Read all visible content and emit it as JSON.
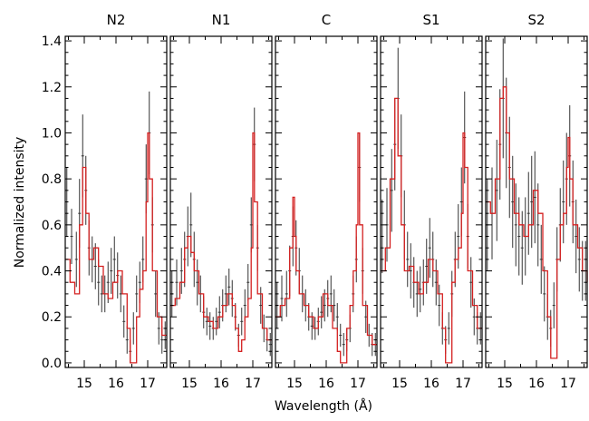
{
  "chart_data": {
    "type": "line",
    "xlabel": "Wavelength  (Å)",
    "ylabel": "Normalized intensity",
    "xlim": [
      14.4,
      17.6
    ],
    "ylim": [
      -0.02,
      1.42
    ],
    "xticks": [
      "15",
      "16",
      "17"
    ],
    "xtick_values": [
      15,
      16,
      17
    ],
    "yticks": [
      "0.0",
      "0.2",
      "0.4",
      "0.6",
      "0.8",
      "1.0",
      "1.2",
      "1.4"
    ],
    "ytick_values": [
      0.0,
      0.2,
      0.4,
      0.6,
      0.8,
      1.0,
      1.2,
      1.4
    ],
    "colors": {
      "data": "#333333",
      "model": "#d42020"
    },
    "panels": [
      {
        "title": "N2",
        "data": {
          "x": [
            14.45,
            14.6,
            14.75,
            14.85,
            14.95,
            15.05,
            15.15,
            15.25,
            15.35,
            15.45,
            15.55,
            15.65,
            15.75,
            15.85,
            15.95,
            16.05,
            16.15,
            16.25,
            16.35,
            16.45,
            16.55,
            16.65,
            16.75,
            16.85,
            16.95,
            17.05,
            17.15,
            17.25,
            17.35,
            17.45,
            17.55
          ],
          "y": [
            0.7,
            0.55,
            0.45,
            0.65,
            0.9,
            0.75,
            0.5,
            0.45,
            0.42,
            0.35,
            0.3,
            0.3,
            0.35,
            0.4,
            0.45,
            0.38,
            0.3,
            0.18,
            0.1,
            0.05,
            0.15,
            0.3,
            0.35,
            0.45,
            0.8,
            1.0,
            0.6,
            0.3,
            0.15,
            0.1,
            0.12
          ],
          "err": [
            0.15,
            0.12,
            0.12,
            0.15,
            0.18,
            0.15,
            0.12,
            0.1,
            0.1,
            0.1,
            0.08,
            0.08,
            0.09,
            0.1,
            0.1,
            0.1,
            0.08,
            0.07,
            0.06,
            0.05,
            0.07,
            0.08,
            0.09,
            0.1,
            0.15,
            0.18,
            0.12,
            0.1,
            0.07,
            0.06,
            0.06
          ]
        },
        "model": {
          "x": [
            14.4,
            14.55,
            14.7,
            14.85,
            14.95,
            15.05,
            15.15,
            15.3,
            15.45,
            15.6,
            15.75,
            15.9,
            16.05,
            16.2,
            16.35,
            16.45,
            16.55,
            16.65,
            16.75,
            16.85,
            16.95,
            17.0,
            17.05,
            17.15,
            17.3,
            17.45,
            17.6
          ],
          "y": [
            0.45,
            0.35,
            0.3,
            0.6,
            0.85,
            0.65,
            0.45,
            0.5,
            0.42,
            0.3,
            0.28,
            0.35,
            0.4,
            0.3,
            0.15,
            0.0,
            0.0,
            0.2,
            0.32,
            0.4,
            0.7,
            1.0,
            0.8,
            0.4,
            0.2,
            0.12,
            0.12
          ]
        }
      },
      {
        "title": "N1",
        "data": {
          "x": [
            14.45,
            14.6,
            14.75,
            14.85,
            14.95,
            15.05,
            15.15,
            15.25,
            15.35,
            15.45,
            15.55,
            15.65,
            15.75,
            15.85,
            15.95,
            16.05,
            16.15,
            16.25,
            16.35,
            16.45,
            16.55,
            16.65,
            16.75,
            16.85,
            16.95,
            17.05,
            17.15,
            17.25,
            17.35,
            17.45,
            17.55
          ],
          "y": [
            0.3,
            0.35,
            0.4,
            0.45,
            0.55,
            0.6,
            0.45,
            0.35,
            0.3,
            0.22,
            0.18,
            0.16,
            0.15,
            0.18,
            0.22,
            0.25,
            0.3,
            0.33,
            0.28,
            0.2,
            0.12,
            0.18,
            0.25,
            0.35,
            0.6,
            0.95,
            0.5,
            0.25,
            0.15,
            0.1,
            0.08
          ],
          "err": [
            0.1,
            0.1,
            0.1,
            0.12,
            0.13,
            0.14,
            0.12,
            0.1,
            0.08,
            0.07,
            0.06,
            0.06,
            0.05,
            0.06,
            0.07,
            0.07,
            0.08,
            0.08,
            0.08,
            0.06,
            0.05,
            0.06,
            0.07,
            0.08,
            0.12,
            0.16,
            0.1,
            0.08,
            0.06,
            0.05,
            0.05
          ]
        },
        "model": {
          "x": [
            14.4,
            14.55,
            14.7,
            14.85,
            14.95,
            15.05,
            15.15,
            15.3,
            15.45,
            15.6,
            15.75,
            15.9,
            16.05,
            16.2,
            16.35,
            16.45,
            16.55,
            16.65,
            16.75,
            16.85,
            16.95,
            17.0,
            17.05,
            17.15,
            17.3,
            17.45,
            17.6
          ],
          "y": [
            0.25,
            0.28,
            0.35,
            0.5,
            0.55,
            0.48,
            0.4,
            0.3,
            0.2,
            0.18,
            0.15,
            0.2,
            0.25,
            0.3,
            0.25,
            0.15,
            0.05,
            0.1,
            0.2,
            0.28,
            0.5,
            1.0,
            0.7,
            0.3,
            0.15,
            0.1,
            0.1
          ]
        }
      },
      {
        "title": "C",
        "data": {
          "x": [
            14.45,
            14.6,
            14.75,
            14.85,
            14.95,
            15.05,
            15.15,
            15.25,
            15.35,
            15.45,
            15.55,
            15.65,
            15.75,
            15.85,
            15.95,
            16.05,
            16.15,
            16.25,
            16.35,
            16.45,
            16.55,
            16.65,
            16.75,
            16.85,
            16.95,
            17.05,
            17.15,
            17.25,
            17.35,
            17.45,
            17.55
          ],
          "y": [
            0.25,
            0.28,
            0.3,
            0.4,
            0.55,
            0.5,
            0.4,
            0.3,
            0.25,
            0.2,
            0.16,
            0.15,
            0.18,
            0.22,
            0.25,
            0.28,
            0.3,
            0.25,
            0.2,
            0.12,
            0.08,
            0.1,
            0.15,
            0.3,
            0.45,
            0.85,
            0.4,
            0.2,
            0.12,
            0.08,
            0.08
          ],
          "err": [
            0.1,
            0.1,
            0.1,
            0.11,
            0.13,
            0.12,
            0.1,
            0.08,
            0.07,
            0.06,
            0.06,
            0.05,
            0.06,
            0.07,
            0.07,
            0.08,
            0.08,
            0.07,
            0.06,
            0.05,
            0.05,
            0.05,
            0.06,
            0.08,
            0.1,
            0.15,
            0.1,
            0.07,
            0.05,
            0.05,
            0.05
          ]
        },
        "model": {
          "x": [
            14.4,
            14.55,
            14.7,
            14.85,
            14.95,
            15.0,
            15.05,
            15.15,
            15.3,
            15.45,
            15.6,
            15.75,
            15.9,
            16.05,
            16.2,
            16.35,
            16.45,
            16.55,
            16.65,
            16.75,
            16.85,
            16.95,
            17.0,
            17.05,
            17.15,
            17.3,
            17.45,
            17.6
          ],
          "y": [
            0.2,
            0.25,
            0.28,
            0.5,
            0.72,
            0.55,
            0.4,
            0.3,
            0.25,
            0.2,
            0.15,
            0.2,
            0.3,
            0.25,
            0.15,
            0.05,
            0.0,
            0.0,
            0.15,
            0.25,
            0.4,
            0.6,
            1.0,
            0.6,
            0.25,
            0.12,
            0.08,
            0.08
          ]
        }
      },
      {
        "title": "S1",
        "data": {
          "x": [
            14.45,
            14.6,
            14.75,
            14.85,
            14.95,
            15.05,
            15.15,
            15.25,
            15.35,
            15.45,
            15.55,
            15.65,
            15.75,
            15.85,
            15.95,
            16.05,
            16.15,
            16.25,
            16.35,
            16.45,
            16.55,
            16.65,
            16.75,
            16.85,
            16.95,
            17.05,
            17.15,
            17.25,
            17.35,
            17.45,
            17.55
          ],
          "y": [
            0.55,
            0.6,
            0.75,
            0.95,
            1.15,
            0.9,
            0.6,
            0.45,
            0.4,
            0.35,
            0.3,
            0.32,
            0.35,
            0.42,
            0.5,
            0.45,
            0.35,
            0.25,
            0.15,
            0.1,
            0.15,
            0.3,
            0.45,
            0.55,
            0.7,
            0.98,
            0.55,
            0.35,
            0.2,
            0.15,
            0.15
          ],
          "err": [
            0.16,
            0.16,
            0.18,
            0.2,
            0.22,
            0.18,
            0.15,
            0.12,
            0.12,
            0.11,
            0.1,
            0.1,
            0.1,
            0.12,
            0.13,
            0.12,
            0.1,
            0.09,
            0.07,
            0.06,
            0.07,
            0.1,
            0.12,
            0.14,
            0.15,
            0.2,
            0.14,
            0.11,
            0.08,
            0.07,
            0.07
          ]
        },
        "model": {
          "x": [
            14.4,
            14.55,
            14.7,
            14.85,
            14.95,
            15.05,
            15.15,
            15.3,
            15.45,
            15.6,
            15.75,
            15.9,
            16.05,
            16.2,
            16.35,
            16.45,
            16.55,
            16.65,
            16.75,
            16.85,
            16.95,
            17.0,
            17.05,
            17.15,
            17.3,
            17.45,
            17.6
          ],
          "y": [
            0.4,
            0.5,
            0.8,
            1.15,
            0.9,
            0.6,
            0.4,
            0.42,
            0.35,
            0.3,
            0.35,
            0.45,
            0.4,
            0.3,
            0.15,
            0.0,
            0.0,
            0.35,
            0.45,
            0.5,
            0.65,
            1.0,
            0.85,
            0.4,
            0.25,
            0.15,
            0.15
          ]
        }
      },
      {
        "title": "S2",
        "data": {
          "x": [
            14.45,
            14.6,
            14.75,
            14.85,
            14.95,
            15.05,
            15.15,
            15.25,
            15.35,
            15.45,
            15.55,
            15.65,
            15.75,
            15.85,
            15.95,
            16.05,
            16.15,
            16.25,
            16.35,
            16.45,
            16.55,
            16.65,
            16.75,
            16.85,
            16.95,
            17.05,
            17.15,
            17.25,
            17.35,
            17.45,
            17.55
          ],
          "y": [
            0.6,
            0.65,
            0.75,
            0.95,
            1.15,
            1.0,
            0.85,
            0.7,
            0.6,
            0.55,
            0.5,
            0.55,
            0.65,
            0.7,
            0.72,
            0.6,
            0.45,
            0.3,
            0.2,
            0.15,
            0.25,
            0.45,
            0.6,
            0.7,
            0.8,
            0.9,
            0.7,
            0.55,
            0.45,
            0.4,
            0.4
          ],
          "err": [
            0.2,
            0.2,
            0.22,
            0.24,
            0.26,
            0.24,
            0.22,
            0.2,
            0.18,
            0.17,
            0.16,
            0.17,
            0.18,
            0.2,
            0.2,
            0.18,
            0.15,
            0.12,
            0.1,
            0.08,
            0.1,
            0.14,
            0.16,
            0.18,
            0.2,
            0.22,
            0.18,
            0.16,
            0.14,
            0.13,
            0.13
          ]
        },
        "model": {
          "x": [
            14.4,
            14.55,
            14.7,
            14.85,
            14.95,
            15.05,
            15.15,
            15.3,
            15.45,
            15.6,
            15.75,
            15.9,
            16.05,
            16.2,
            16.35,
            16.45,
            16.55,
            16.65,
            16.75,
            16.85,
            16.95,
            17.0,
            17.05,
            17.15,
            17.3,
            17.45,
            17.6
          ],
          "y": [
            0.7,
            0.65,
            0.8,
            1.15,
            1.2,
            1.0,
            0.8,
            0.65,
            0.6,
            0.55,
            0.6,
            0.75,
            0.65,
            0.4,
            0.2,
            0.02,
            0.02,
            0.45,
            0.6,
            0.65,
            0.85,
            0.98,
            0.8,
            0.6,
            0.5,
            0.4,
            0.35
          ]
        }
      }
    ]
  }
}
